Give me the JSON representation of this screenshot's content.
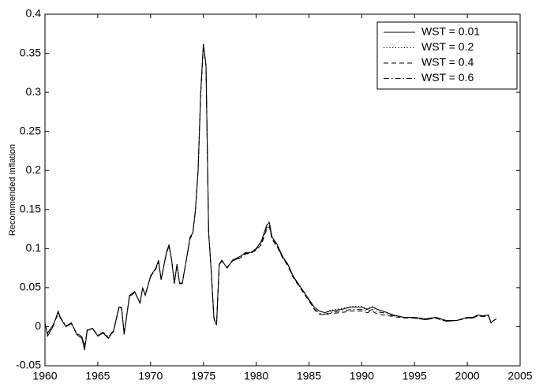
{
  "chart_data": {
    "type": "line",
    "y_label": "Recommended Inflation",
    "x": [
      1960,
      1960.25,
      1960.75,
      1961.25,
      1961.5,
      1962,
      1962.5,
      1963,
      1963.5,
      1963.75,
      1964,
      1964.5,
      1965,
      1965.5,
      1966,
      1966.5,
      1967,
      1967.25,
      1967.5,
      1968,
      1968.5,
      1969,
      1969.25,
      1969.5,
      1970,
      1970.5,
      1970.75,
      1971,
      1971.5,
      1971.75,
      1972,
      1972.25,
      1972.5,
      1972.75,
      1973,
      1973.5,
      1973.75,
      1974,
      1974.25,
      1974.5,
      1974.75,
      1975,
      1975.25,
      1975.5,
      1975.75,
      1976,
      1976.25,
      1976.5,
      1976.75,
      1977.25,
      1977.75,
      1978.5,
      1979,
      1979.5,
      1980,
      1980.5,
      1981,
      1981.25,
      1981.5,
      1982,
      1982.5,
      1983,
      1983.5,
      1984,
      1984.5,
      1985,
      1985.25,
      1985.5,
      1986,
      1986.5,
      1987,
      1988,
      1989,
      1990,
      1990.5,
      1991,
      1991.5,
      1992,
      1993,
      1994,
      1995,
      1996,
      1997,
      1998,
      1999,
      2000,
      2000.5,
      2001,
      2001.5,
      2002,
      2002.25,
      2002.5,
      2002.75
    ],
    "series": [
      {
        "name": "WST = 0.01",
        "color": "#000000",
        "dash": "solid",
        "values": [
          0.005,
          -0.012,
          0.0,
          0.02,
          0.01,
          0.0,
          0.005,
          -0.01,
          -0.015,
          -0.03,
          -0.005,
          -0.002,
          -0.012,
          -0.008,
          -0.015,
          -0.005,
          0.025,
          0.025,
          -0.01,
          0.04,
          0.045,
          0.03,
          0.05,
          0.04,
          0.065,
          0.075,
          0.085,
          0.06,
          0.095,
          0.105,
          0.085,
          0.055,
          0.08,
          0.055,
          0.055,
          0.095,
          0.115,
          0.12,
          0.15,
          0.2,
          0.3,
          0.362,
          0.335,
          0.12,
          0.07,
          0.01,
          0.002,
          0.08,
          0.085,
          0.075,
          0.085,
          0.09,
          0.095,
          0.095,
          0.1,
          0.11,
          0.13,
          0.133,
          0.115,
          0.105,
          0.09,
          0.08,
          0.065,
          0.055,
          0.045,
          0.035,
          0.03,
          0.025,
          0.02,
          0.018,
          0.02,
          0.022,
          0.025,
          0.025,
          0.022,
          0.025,
          0.022,
          0.02,
          0.015,
          0.012,
          0.012,
          0.01,
          0.012,
          0.008,
          0.008,
          0.012,
          0.012,
          0.015,
          0.014,
          0.015,
          0.005,
          0.008,
          0.01
        ]
      },
      {
        "name": "WST = 0.2",
        "color": "#000000",
        "dash": "dotted",
        "values": [
          0.005,
          -0.01,
          0.0,
          0.018,
          0.01,
          0.0,
          0.005,
          -0.01,
          -0.015,
          -0.028,
          -0.005,
          -0.002,
          -0.012,
          -0.008,
          -0.015,
          -0.005,
          0.025,
          0.025,
          -0.01,
          0.04,
          0.045,
          0.03,
          0.05,
          0.04,
          0.065,
          0.075,
          0.085,
          0.06,
          0.095,
          0.105,
          0.085,
          0.055,
          0.08,
          0.055,
          0.055,
          0.095,
          0.115,
          0.12,
          0.15,
          0.2,
          0.3,
          0.362,
          0.335,
          0.12,
          0.07,
          0.01,
          0.002,
          0.08,
          0.085,
          0.075,
          0.085,
          0.09,
          0.095,
          0.095,
          0.1,
          0.108,
          0.13,
          0.135,
          0.115,
          0.105,
          0.09,
          0.08,
          0.065,
          0.055,
          0.045,
          0.035,
          0.03,
          0.025,
          0.02,
          0.018,
          0.021,
          0.023,
          0.026,
          0.026,
          0.023,
          0.026,
          0.022,
          0.02,
          0.015,
          0.012,
          0.012,
          0.01,
          0.012,
          0.008,
          0.008,
          0.012,
          0.012,
          0.015,
          0.014,
          0.015,
          0.005,
          0.008,
          0.01
        ]
      },
      {
        "name": "WST = 0.4",
        "color": "#000000",
        "dash": "dashed",
        "values": [
          0.002,
          -0.008,
          0.002,
          0.016,
          0.01,
          0.0,
          0.004,
          -0.008,
          -0.013,
          -0.026,
          -0.004,
          -0.003,
          -0.011,
          -0.008,
          -0.014,
          -0.006,
          0.024,
          0.024,
          -0.008,
          0.038,
          0.044,
          0.031,
          0.049,
          0.041,
          0.064,
          0.074,
          0.083,
          0.061,
          0.094,
          0.103,
          0.085,
          0.056,
          0.079,
          0.056,
          0.056,
          0.094,
          0.113,
          0.119,
          0.149,
          0.2,
          0.298,
          0.36,
          0.333,
          0.121,
          0.071,
          0.012,
          0.004,
          0.079,
          0.084,
          0.076,
          0.084,
          0.088,
          0.093,
          0.094,
          0.098,
          0.105,
          0.125,
          0.128,
          0.112,
          0.102,
          0.088,
          0.078,
          0.063,
          0.053,
          0.043,
          0.033,
          0.028,
          0.022,
          0.016,
          0.015,
          0.017,
          0.018,
          0.02,
          0.02,
          0.018,
          0.02,
          0.016,
          0.015,
          0.013,
          0.011,
          0.011,
          0.009,
          0.011,
          0.007,
          0.008,
          0.011,
          0.011,
          0.014,
          0.013,
          0.014,
          0.005,
          0.008,
          0.01
        ]
      },
      {
        "name": "WST = 0.6",
        "color": "#000000",
        "dash": "dashdot",
        "values": [
          0.003,
          -0.008,
          0.002,
          0.017,
          0.011,
          0.001,
          0.005,
          -0.009,
          -0.013,
          -0.025,
          -0.004,
          -0.002,
          -0.011,
          -0.007,
          -0.013,
          -0.005,
          0.024,
          0.024,
          -0.008,
          0.039,
          0.044,
          0.031,
          0.049,
          0.041,
          0.064,
          0.074,
          0.084,
          0.061,
          0.094,
          0.104,
          0.085,
          0.056,
          0.079,
          0.056,
          0.056,
          0.094,
          0.114,
          0.119,
          0.149,
          0.2,
          0.299,
          0.361,
          0.334,
          0.121,
          0.071,
          0.011,
          0.003,
          0.079,
          0.084,
          0.076,
          0.084,
          0.089,
          0.094,
          0.094,
          0.099,
          0.107,
          0.127,
          0.13,
          0.113,
          0.103,
          0.089,
          0.079,
          0.064,
          0.054,
          0.044,
          0.034,
          0.029,
          0.023,
          0.017,
          0.016,
          0.018,
          0.02,
          0.022,
          0.022,
          0.02,
          0.022,
          0.019,
          0.018,
          0.014,
          0.012,
          0.011,
          0.009,
          0.011,
          0.007,
          0.008,
          0.011,
          0.011,
          0.014,
          0.013,
          0.014,
          0.005,
          0.008,
          0.01
        ]
      }
    ],
    "xlim": [
      1960,
      2005
    ],
    "xticks": [
      1960,
      1965,
      1970,
      1975,
      1980,
      1985,
      1990,
      1995,
      2000,
      2005
    ],
    "ylim": [
      -0.05,
      0.4
    ],
    "yticks": [
      -0.05,
      0,
      0.05,
      0.1,
      0.15,
      0.2,
      0.25,
      0.3,
      0.35,
      0.4
    ],
    "legend": "upper right"
  }
}
